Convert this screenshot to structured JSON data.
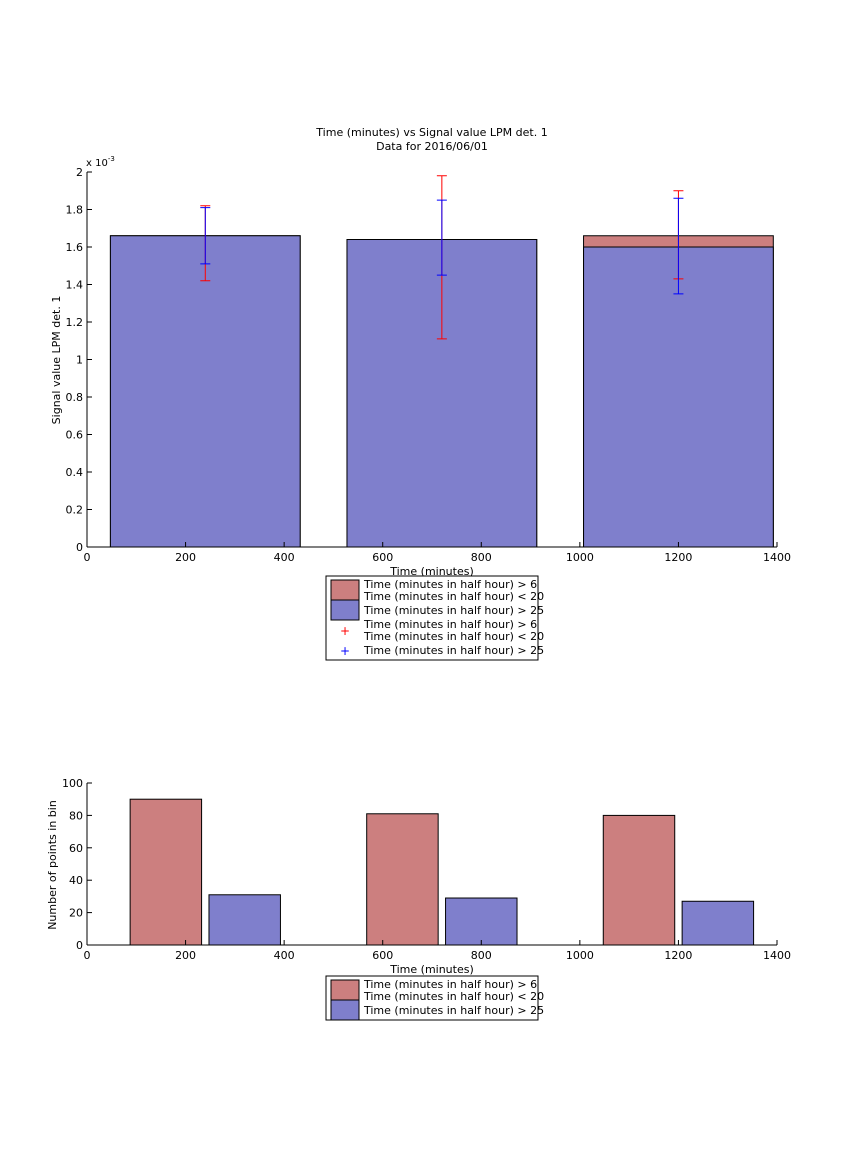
{
  "figure_title": "Time (minutes) vs Signal value LPM det. 1",
  "figure_subtitle": "Data for 2016/06/01",
  "colors": {
    "red_fill": "#cc7f7f",
    "blue_fill": "#7f7fcc",
    "red_err": "#ff0000",
    "blue_err": "#0000ff",
    "axis": "#000000"
  },
  "chart_data": [
    {
      "type": "bar",
      "title": "Time (minutes) vs Signal value LPM det. 1",
      "subtitle": "Data for 2016/06/01",
      "xlabel": "Time (minutes)",
      "ylabel": "Signal value LPM det. 1",
      "ylabel_exponent": "x 10^-3",
      "exponent_base": "x 10",
      "exponent_power": "-3",
      "xlim": [
        0,
        1400
      ],
      "ylim": [
        0,
        0.002
      ],
      "xticks": [
        0,
        200,
        400,
        600,
        800,
        1000,
        1200,
        1400
      ],
      "yticks": [
        0,
        0.0002,
        0.0004,
        0.0006,
        0.0008,
        0.001,
        0.0012,
        0.0014,
        0.0016,
        0.0018,
        0.002
      ],
      "ytick_labels": [
        "0",
        "0.2",
        "0.4",
        "0.6",
        "0.8",
        "1",
        "1.2",
        "1.4",
        "1.6",
        "1.8",
        "2"
      ],
      "bar_width": 385,
      "x": [
        240,
        720,
        1200
      ],
      "series": [
        {
          "name": "Time (minutes in half hour) > 6 Time (minutes in half hour) < 20",
          "values": [
            0.00166,
            0.00164,
            0.00166
          ],
          "error_low": [
            0.00142,
            0.00111,
            0.00143
          ],
          "error_high": [
            0.00182,
            0.00198,
            0.0019
          ],
          "color": "#cc7f7f",
          "error_color": "#ff0000"
        },
        {
          "name": "Time (minutes in half hour) > 25",
          "values": [
            0.00166,
            0.00164,
            0.0016
          ],
          "error_low": [
            0.00151,
            0.00145,
            0.00135
          ],
          "error_high": [
            0.00181,
            0.00185,
            0.00186
          ],
          "color": "#7f7fcc",
          "error_color": "#0000ff"
        }
      ],
      "legend": {
        "placement": "below",
        "entries": [
          {
            "line1": "Time (minutes in half hour) > 6",
            "line2": "Time (minutes in half hour) < 20",
            "kind": "patch",
            "color": "#cc7f7f"
          },
          {
            "line1": "Time (minutes in half hour) > 25",
            "line2": "",
            "kind": "patch",
            "color": "#7f7fcc"
          },
          {
            "line1": "Time (minutes in half hour) > 6",
            "line2": "Time (minutes in half hour) < 20",
            "kind": "marker",
            "color": "#ff0000"
          },
          {
            "line1": "Time (minutes in half hour) > 25",
            "line2": "",
            "kind": "marker",
            "color": "#0000ff"
          }
        ]
      }
    },
    {
      "type": "bar",
      "xlabel": "Time (minutes)",
      "ylabel": "Number of points in bin",
      "xlim": [
        0,
        1400
      ],
      "ylim": [
        0,
        100
      ],
      "xticks": [
        0,
        200,
        400,
        600,
        800,
        1000,
        1200,
        1400
      ],
      "yticks": [
        0,
        20,
        40,
        60,
        80,
        100
      ],
      "bar_width": 145,
      "series": [
        {
          "name": "Time (minutes in half hour) > 6 Time (minutes in half hour) < 20",
          "x": [
            160,
            640,
            1120
          ],
          "values": [
            90,
            81,
            80
          ],
          "color": "#cc7f7f"
        },
        {
          "name": "Time (minutes in half hour) > 25",
          "x": [
            320,
            800,
            1280
          ],
          "values": [
            31,
            29,
            27
          ],
          "color": "#7f7fcc"
        }
      ],
      "legend": {
        "placement": "below",
        "entries": [
          {
            "line1": "Time (minutes in half hour) > 6",
            "line2": "Time (minutes in half hour) < 20",
            "kind": "patch",
            "color": "#cc7f7f"
          },
          {
            "line1": "Time (minutes in half hour) > 25",
            "line2": "",
            "kind": "patch",
            "color": "#7f7fcc"
          }
        ]
      }
    }
  ]
}
